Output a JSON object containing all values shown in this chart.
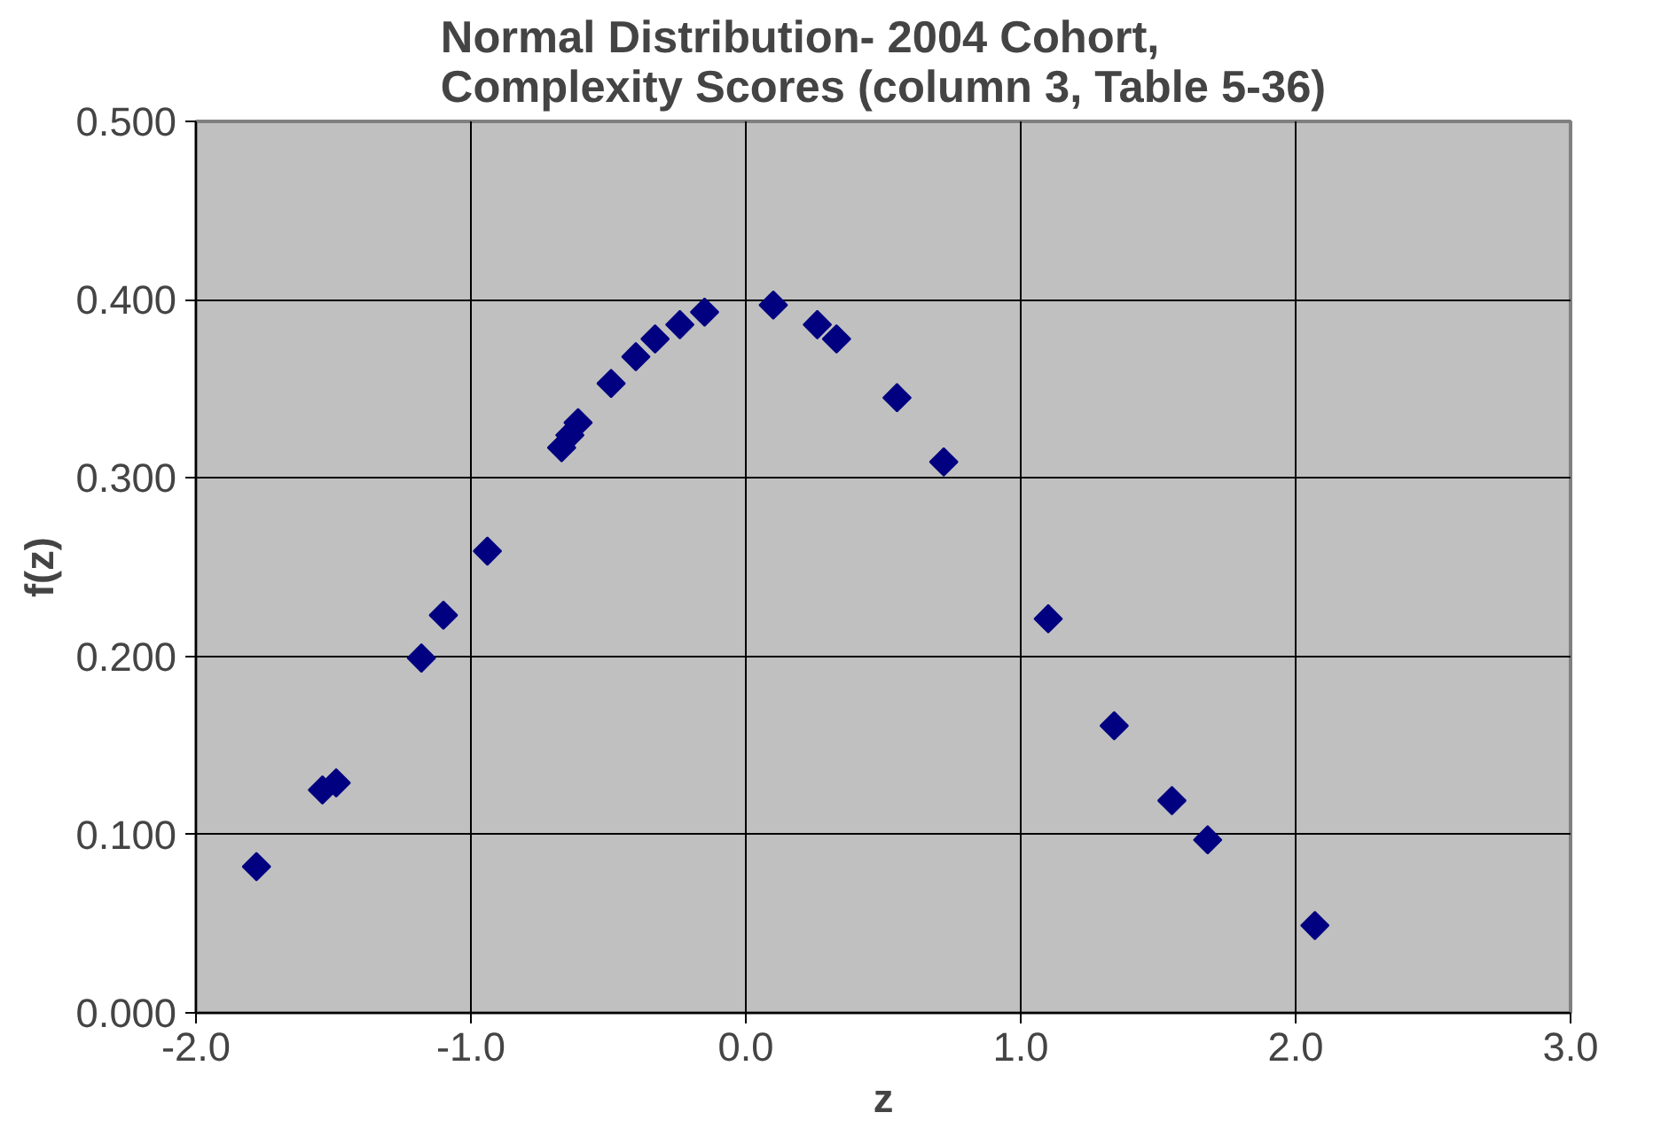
{
  "chart_data": {
    "type": "scatter",
    "title": "Normal Distribution- 2004 Cohort,\nComplexity Scores (column 3, Table 5-36)",
    "xlabel": "z",
    "ylabel": "f(z)",
    "x": [
      -1.78,
      -1.54,
      -1.49,
      -1.18,
      -1.1,
      -0.94,
      -0.67,
      -0.64,
      -0.61,
      -0.49,
      -0.4,
      -0.33,
      -0.24,
      -0.15,
      0.1,
      0.26,
      0.33,
      0.55,
      0.72,
      1.1,
      1.34,
      1.55,
      1.68,
      2.07
    ],
    "series": [
      {
        "color": "#000080",
        "values": [
          0.082,
          0.125,
          0.129,
          0.199,
          0.223,
          0.259,
          0.317,
          0.324,
          0.331,
          0.353,
          0.368,
          0.378,
          0.386,
          0.393,
          0.397,
          0.386,
          0.378,
          0.345,
          0.309,
          0.221,
          0.161,
          0.119,
          0.097,
          0.049
        ]
      }
    ],
    "xlim": [
      -2.0,
      3.0
    ],
    "xticks": [
      {
        "value": -2,
        "label": "-2.0"
      },
      {
        "value": -1,
        "label": "-1.0"
      },
      {
        "value": 0,
        "label": "0.0"
      },
      {
        "value": 1,
        "label": "1.0"
      },
      {
        "value": 2,
        "label": "2.0"
      },
      {
        "value": 3,
        "label": "3.0"
      }
    ],
    "ylim": [
      0,
      0.5
    ],
    "yticks": [
      {
        "value": 0,
        "label": "0.000"
      },
      {
        "value": 0.1,
        "label": "0.100"
      },
      {
        "value": 0.2,
        "label": "0.200"
      },
      {
        "value": 0.3,
        "label": "0.300"
      },
      {
        "value": 0.4,
        "label": "0.400"
      },
      {
        "value": 0.5,
        "label": "0.500"
      }
    ],
    "grid": true,
    "marker": "diamond"
  }
}
